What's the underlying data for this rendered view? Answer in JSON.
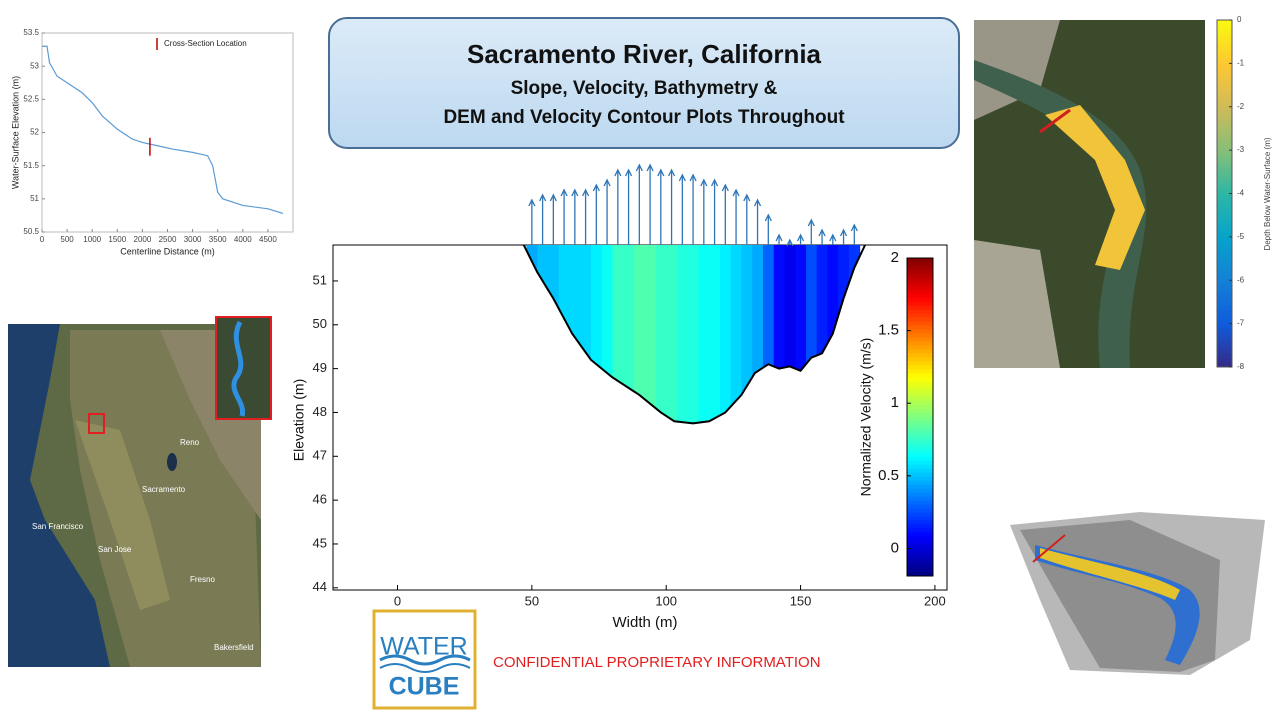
{
  "slide": {
    "title": "Sacramento River, California",
    "subtitle": [
      "Slope, Velocity, Bathymetry &",
      "DEM and Velocity Contour Plots Throughout"
    ],
    "notice": "CONFIDENTIAL PROPRIETARY INFORMATION",
    "logo": [
      "WATER",
      "CUBE"
    ]
  },
  "map": {
    "labels": [
      "Sacramento",
      "San Francisco",
      "San Jose",
      "Reno",
      "Fresno",
      "Bakersfield"
    ]
  },
  "chart_data": [
    {
      "type": "line",
      "x_label": "Centerline Distance (m)",
      "y_label": "Water-Surface Elevation (m)",
      "annotation": "Cross-Section Location",
      "marker": {
        "x": 2150,
        "y": [
          51.65,
          51.92
        ],
        "color": "#c00000"
      },
      "x": [
        0,
        100,
        150,
        300,
        500,
        800,
        1000,
        1200,
        1500,
        1800,
        2000,
        2300,
        2600,
        3000,
        3300,
        3400,
        3500,
        3600,
        4000,
        4500,
        4800
      ],
      "series": [
        {
          "color": "#5b9bd5",
          "values": [
            53.3,
            53.3,
            53.05,
            52.85,
            52.75,
            52.6,
            52.45,
            52.25,
            52.05,
            51.9,
            51.85,
            51.8,
            51.75,
            51.7,
            51.65,
            51.5,
            51.1,
            51.0,
            50.9,
            50.85,
            50.78
          ]
        }
      ],
      "xlim": [
        0,
        5000
      ],
      "xticks": [
        0,
        500,
        1000,
        1500,
        2000,
        2500,
        3000,
        3500,
        4000,
        4500
      ],
      "ylim": [
        50.5,
        53.5
      ],
      "yticks": [
        50.5,
        51,
        51.5,
        52,
        52.5,
        53,
        53.5
      ]
    },
    {
      "type": "heatmap",
      "x_label": "Width (m)",
      "y_label": "Elevation (m)",
      "xlim": [
        -24,
        204.5
      ],
      "xticks": [
        0,
        50,
        100,
        150,
        200
      ],
      "ylim": [
        43.95,
        51.82
      ],
      "yticks": [
        44,
        45,
        46,
        47,
        48,
        49,
        50,
        51
      ],
      "bed": {
        "x": [
          47,
          52,
          58,
          65,
          72,
          80,
          90,
          98,
          103,
          110,
          116,
          122,
          128,
          133,
          138,
          142,
          146,
          150,
          154,
          158,
          162,
          166,
          170,
          174
        ],
        "y": [
          51.82,
          51.2,
          50.6,
          49.8,
          49.2,
          48.8,
          48.4,
          48.0,
          47.8,
          47.75,
          47.8,
          48.0,
          48.4,
          48.9,
          49.1,
          49.0,
          49.05,
          48.95,
          49.25,
          49.35,
          49.8,
          50.6,
          51.3,
          51.82
        ]
      },
      "velocity": {
        "x": [
          50,
          54,
          58,
          62,
          66,
          70,
          74,
          78,
          82,
          86,
          90,
          94,
          98,
          102,
          106,
          110,
          114,
          118,
          122,
          126,
          130,
          134,
          138,
          142,
          146,
          150,
          154,
          158,
          162,
          166,
          170
        ],
        "values": [
          0.45,
          0.5,
          0.5,
          0.55,
          0.55,
          0.55,
          0.6,
          0.65,
          0.75,
          0.75,
          0.8,
          0.8,
          0.75,
          0.75,
          0.7,
          0.7,
          0.65,
          0.65,
          0.6,
          0.55,
          0.5,
          0.45,
          0.3,
          0.1,
          0.05,
          0.1,
          0.25,
          0.15,
          0.1,
          0.15,
          0.2
        ]
      },
      "colorbar": {
        "label": "Normalized Velocity (m/s)",
        "lim": [
          -0.19,
          2.0
        ],
        "ticks": [
          0,
          0.5,
          1,
          1.5,
          2
        ]
      }
    },
    {
      "type": "colorbar",
      "label": "Depth Below Water-Surface (m)",
      "ylim": [
        -8,
        0
      ],
      "yticks": [
        0,
        -1,
        -2,
        -3,
        -4,
        -5,
        -6,
        -7,
        -8
      ]
    }
  ]
}
